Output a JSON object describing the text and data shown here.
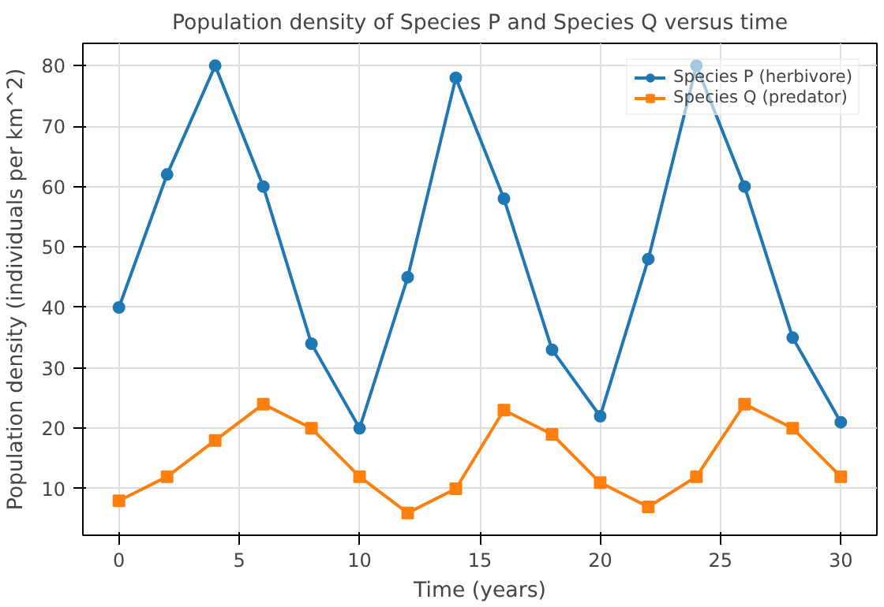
{
  "chart_data": {
    "type": "line",
    "title": "Population density of Species P and Species Q versus time",
    "xlabel": "Time (years)",
    "ylabel": "Population density (individuals per km^2)",
    "x": [
      0,
      2,
      4,
      6,
      8,
      10,
      12,
      14,
      16,
      18,
      20,
      22,
      24,
      26,
      28,
      30
    ],
    "series": [
      {
        "name": "Species P (herbivore)",
        "color": "#1f77b4",
        "marker": "circle",
        "values": [
          40,
          62,
          80,
          60,
          34,
          20,
          45,
          78,
          58,
          33,
          22,
          48,
          80,
          60,
          35,
          21
        ]
      },
      {
        "name": "Species Q (predator)",
        "color": "#ff7f0e",
        "marker": "square",
        "values": [
          8,
          12,
          18,
          24,
          20,
          12,
          6,
          10,
          23,
          19,
          11,
          7,
          12,
          24,
          20,
          12
        ]
      }
    ],
    "xlim": [
      -1.5,
      31.5
    ],
    "ylim": [
      2.3,
      83.7
    ],
    "xticks": [
      0,
      5,
      10,
      15,
      20,
      25,
      30
    ],
    "yticks": [
      10,
      20,
      30,
      40,
      50,
      60,
      70,
      80
    ],
    "grid": true,
    "legend": "top right",
    "line_style": "solid"
  }
}
